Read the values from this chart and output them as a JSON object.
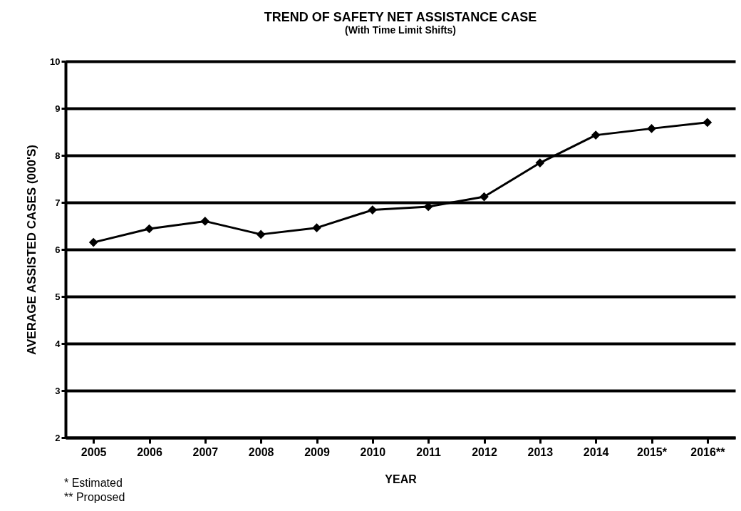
{
  "chart_data": {
    "type": "line",
    "title": "TREND OF SAFETY NET ASSISTANCE CASE",
    "subtitle": "(With Time Limit Shifts)",
    "xlabel": "YEAR",
    "ylabel": "AVERAGE ASSISTED CASES (000'S)",
    "categories": [
      "2005",
      "2006",
      "2007",
      "2008",
      "2009",
      "2010",
      "2011",
      "2012",
      "2013",
      "2014",
      "2015*",
      "2016**"
    ],
    "series": [
      {
        "color": "#000000",
        "values": [
          6.15,
          6.44,
          6.6,
          6.32,
          6.46,
          6.84,
          6.91,
          7.12,
          7.84,
          8.43,
          8.57,
          8.7
        ]
      }
    ],
    "ylim": [
      2,
      10
    ],
    "yticks": [
      2,
      3,
      4,
      5,
      6,
      7,
      8,
      9,
      10
    ],
    "grid": "y",
    "marker": "diamond",
    "line_style": "solid",
    "legend": false,
    "annotations": [
      "* Estimated",
      "** Proposed"
    ]
  }
}
